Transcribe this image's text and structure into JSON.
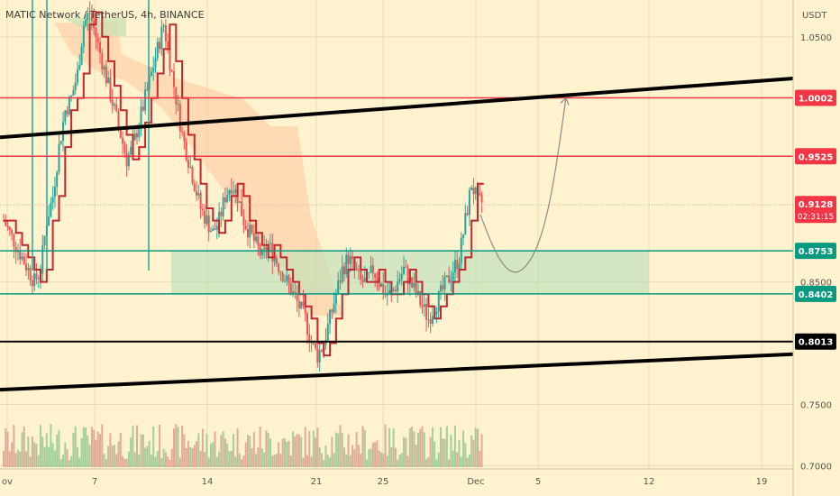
{
  "chart_data": {
    "type": "candlestick",
    "title": "MATIC Network / TetherUS, 4h, BINANCE",
    "currency": "USDT",
    "ylim": [
      0.69,
      1.08
    ],
    "y_ticks": [
      {
        "value": 1.05,
        "label": "1.0500"
      },
      {
        "value": 0.85,
        "label": "0.8500"
      },
      {
        "value": 0.75,
        "label": "0.7500"
      },
      {
        "value": 0.7,
        "label": "0.7000"
      }
    ],
    "x_ticks": [
      "ov",
      "7",
      "14",
      "21",
      "25",
      "Dec",
      "5",
      "12",
      "19"
    ],
    "price_levels": [
      {
        "value": 1.0002,
        "label": "1.0002",
        "color": "#f23645"
      },
      {
        "value": 0.9525,
        "label": "0.9525",
        "color": "#f23645"
      },
      {
        "value": 0.8753,
        "label": "0.8753",
        "color": "#089981"
      },
      {
        "value": 0.8402,
        "label": "0.8402",
        "color": "#089981"
      },
      {
        "value": 0.8013,
        "label": "0.8013",
        "color": "#000000"
      }
    ],
    "current_price": {
      "value": 0.9128,
      "label": "0.9128",
      "countdown": "02:31:15",
      "color": "#f23645"
    },
    "trend_channel": {
      "upper": [
        {
          "date": "Oct 31",
          "price": 0.968
        },
        {
          "date": "Dec 12",
          "price": 1.016
        }
      ],
      "lower": [
        {
          "date": "Oct 31",
          "price": 0.762
        },
        {
          "date": "Dec 12",
          "price": 0.791
        }
      ]
    },
    "support_zone": {
      "from": "Nov 12",
      "to": "Dec 12",
      "top": 0.8753,
      "bottom": 0.8402
    },
    "projection": [
      {
        "date": "Dec 1",
        "price": 0.905
      },
      {
        "date": "Dec 3",
        "price": 0.85
      },
      {
        "date": "Dec 5",
        "price": 0.88
      },
      {
        "date": "Dec 7",
        "price": 1.0002
      }
    ],
    "series": [
      {
        "values": [
          0.9,
          0.89,
          0.88,
          0.87,
          0.86,
          0.85,
          0.86,
          0.9,
          0.92,
          0.96,
          0.99,
          1.0,
          1.02,
          1.06,
          1.07,
          1.05,
          1.03,
          1.01,
          0.99,
          0.97,
          0.95,
          0.96,
          0.98,
          1.0,
          1.02,
          1.04,
          1.06,
          1.03,
          1.0,
          0.97,
          0.95,
          0.93,
          0.91,
          0.9,
          0.89,
          0.9,
          0.92,
          0.93,
          0.92,
          0.9,
          0.89,
          0.88,
          0.87,
          0.88,
          0.87,
          0.86,
          0.85,
          0.84,
          0.83,
          0.82,
          0.8,
          0.79,
          0.8,
          0.82,
          0.84,
          0.86,
          0.87,
          0.86,
          0.85,
          0.85,
          0.86,
          0.85,
          0.84,
          0.84,
          0.85,
          0.86,
          0.85,
          0.84,
          0.83,
          0.82,
          0.83,
          0.84,
          0.85,
          0.86,
          0.87,
          0.9,
          0.93,
          0.915
        ]
      }
    ]
  }
}
